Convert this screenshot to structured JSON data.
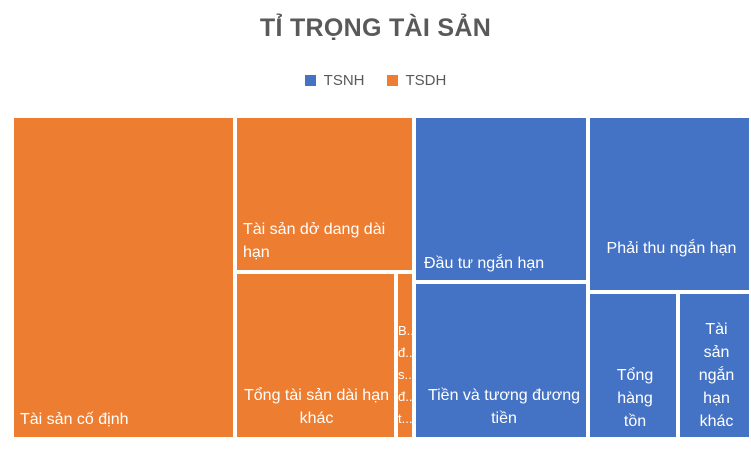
{
  "chart_data": {
    "type": "treemap",
    "title": "TỈ TRỌNG TÀI SẢN",
    "legend": {
      "position": "top",
      "items": [
        {
          "name": "TSNH",
          "color": "#4472C4"
        },
        {
          "name": "TSDH",
          "color": "#ED7D31"
        }
      ]
    },
    "groups": [
      {
        "name": "TSDH",
        "color": "#ED7D31",
        "items": [
          {
            "label": "Tài sản cố định",
            "value": 33.0
          },
          {
            "label": "Tài sản dở dang dài hạn",
            "value": 8.0
          },
          {
            "label": "Tổng tài sản dài hạn khác",
            "value": 9.0
          },
          {
            "label": "B... đ... s... đ... t...",
            "value": 1.2
          }
        ]
      },
      {
        "name": "TSNH",
        "color": "#4472C4",
        "items": [
          {
            "label": "Đầu tư ngắn hạn",
            "value": 14.0
          },
          {
            "label": "Tiền và tương đương tiền",
            "value": 13.0
          },
          {
            "label": "Phải thu ngắn hạn",
            "value": 10.0
          },
          {
            "label": "Tổng hàng tồn kho",
            "value": 7.0
          },
          {
            "label": "Tài sản ngắn hạn khác",
            "value": 5.0
          }
        ]
      }
    ]
  }
}
